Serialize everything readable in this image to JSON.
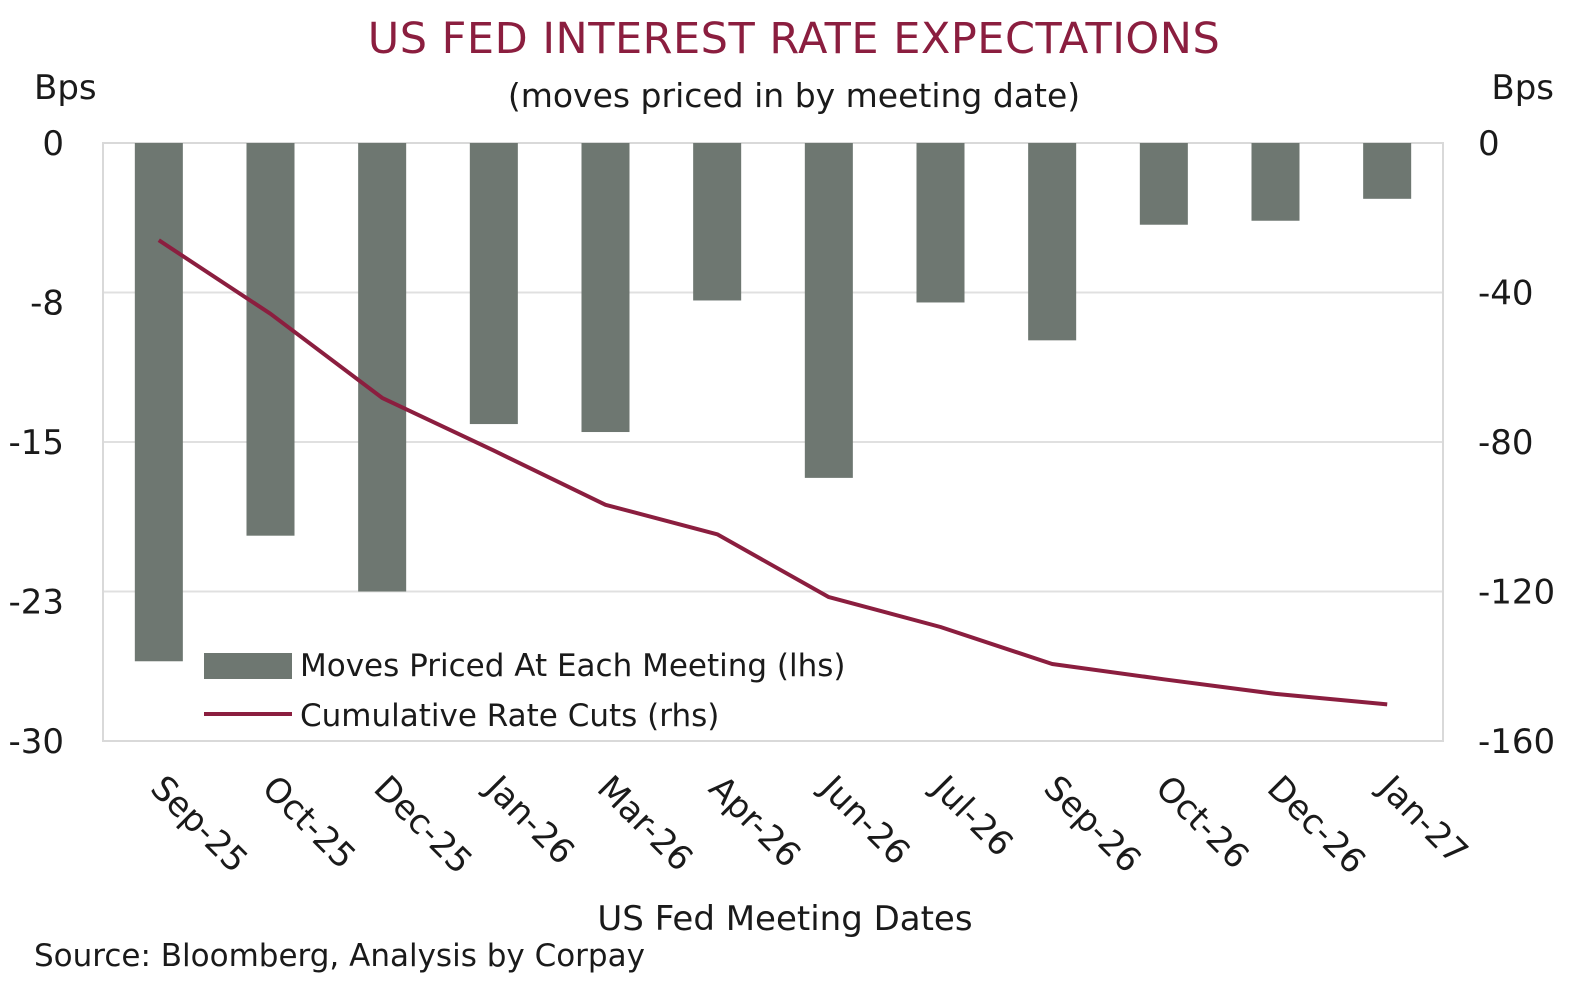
{
  "title": "US FED INTEREST RATE EXPECTATIONS",
  "subtitle": "(moves priced in by meeting date)",
  "left_unit": "Bps",
  "right_unit": "Bps",
  "source": "Source: Bloomberg, Analysis by Corpay",
  "colors": {
    "bar": "#6e7771",
    "line": "#8b1e3f",
    "title": "#8b1e3f",
    "grid": "#e0e0e0"
  },
  "chart_data": {
    "type": "bar",
    "title": "US FED INTEREST RATE EXPECTATIONS",
    "subtitle": "(moves priced in by meeting date)",
    "xlabel": "US Fed Meeting Dates",
    "ylabel": "Bps",
    "y2label": "Bps",
    "categories": [
      "Sep-25",
      "Oct-25",
      "Dec-25",
      "Jan-26",
      "Mar-26",
      "Apr-26",
      "Jun-26",
      "Jul-26",
      "Sep-26",
      "Oct-26",
      "Dec-26",
      "Jan-27"
    ],
    "ylim": [
      -30,
      0
    ],
    "yticks": [
      0,
      -8,
      -15,
      -23,
      -30
    ],
    "y2lim": [
      -160,
      0
    ],
    "y2ticks": [
      0,
      -40,
      -80,
      -120,
      -160
    ],
    "grid": true,
    "legend_position": "bottom-left",
    "series": [
      {
        "name": "Moves Priced At Each Meeting (lhs)",
        "type": "bar",
        "axis": "left",
        "values": [
          -26.0,
          -19.7,
          -22.5,
          -14.1,
          -14.5,
          -7.9,
          -16.8,
          -8.0,
          -9.9,
          -4.1,
          -3.9,
          -2.8
        ]
      },
      {
        "name": "Cumulative Rate Cuts (rhs)",
        "type": "line",
        "axis": "right",
        "values": [
          -26,
          -45.7,
          -68.2,
          -82.3,
          -96.8,
          -104.7,
          -121.5,
          -129.5,
          -139.4,
          -143.5,
          -147.4,
          -150.2
        ]
      }
    ]
  }
}
